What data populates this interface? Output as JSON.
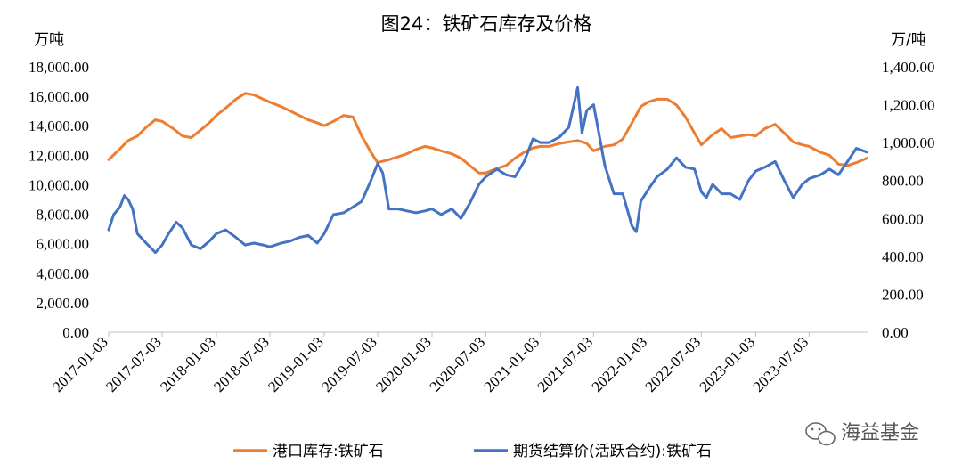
{
  "chart_data": {
    "type": "line",
    "title": "图24：铁矿石库存及价格",
    "y_left_unit": "万吨",
    "y_right_unit": "万/吨",
    "y_left_lim": [
      0,
      18000
    ],
    "y_right_lim": [
      0,
      1400
    ],
    "y_left_ticks": [
      "0.00",
      "2,000.00",
      "4,000.00",
      "6,000.00",
      "8,000.00",
      "10,000.00",
      "12,000.00",
      "14,000.00",
      "16,000.00",
      "18,000.00"
    ],
    "y_right_ticks": [
      "0.00",
      "200.00",
      "400.00",
      "600.00",
      "800.00",
      "1,000.00",
      "1,200.00",
      "1,400.00"
    ],
    "x_tick_labels": [
      "2017-01-03",
      "2017-07-03",
      "2018-01-03",
      "2018-07-03",
      "2019-01-03",
      "2019-07-03",
      "2020-01-03",
      "2020-07-03",
      "2021-01-03",
      "2021-07-03",
      "2022-01-03",
      "2022-07-03",
      "2023-01-03",
      "2023-07-03"
    ],
    "x_range": [
      "2017-01-03",
      "2024-01-20"
    ],
    "grid": false,
    "legend_position": "bottom",
    "series": [
      {
        "name": "港口库存:铁矿石",
        "axis": "left",
        "color": "#ED7D31",
        "points": [
          [
            "2017-01-03",
            11700
          ],
          [
            "2017-02-03",
            12300
          ],
          [
            "2017-03-10",
            13000
          ],
          [
            "2017-04-10",
            13300
          ],
          [
            "2017-05-10",
            13900
          ],
          [
            "2017-06-10",
            14400
          ],
          [
            "2017-07-03",
            14300
          ],
          [
            "2017-08-10",
            13800
          ],
          [
            "2017-09-10",
            13300
          ],
          [
            "2017-10-10",
            13200
          ],
          [
            "2017-11-10",
            13700
          ],
          [
            "2017-12-10",
            14200
          ],
          [
            "2018-01-03",
            14700
          ],
          [
            "2018-02-03",
            15200
          ],
          [
            "2018-03-10",
            15800
          ],
          [
            "2018-04-10",
            16200
          ],
          [
            "2018-05-10",
            16100
          ],
          [
            "2018-06-10",
            15800
          ],
          [
            "2018-07-03",
            15600
          ],
          [
            "2018-08-10",
            15300
          ],
          [
            "2018-09-10",
            15000
          ],
          [
            "2018-10-10",
            14700
          ],
          [
            "2018-11-10",
            14400
          ],
          [
            "2018-12-10",
            14200
          ],
          [
            "2019-01-03",
            14000
          ],
          [
            "2019-02-03",
            14300
          ],
          [
            "2019-03-10",
            14700
          ],
          [
            "2019-04-10",
            14600
          ],
          [
            "2019-05-10",
            13300
          ],
          [
            "2019-06-10",
            12200
          ],
          [
            "2019-07-03",
            11500
          ],
          [
            "2019-08-10",
            11700
          ],
          [
            "2019-09-10",
            11900
          ],
          [
            "2019-10-10",
            12100
          ],
          [
            "2019-11-10",
            12400
          ],
          [
            "2019-12-10",
            12600
          ],
          [
            "2020-01-03",
            12500
          ],
          [
            "2020-02-03",
            12300
          ],
          [
            "2020-03-10",
            12100
          ],
          [
            "2020-04-10",
            11800
          ],
          [
            "2020-05-10",
            11300
          ],
          [
            "2020-06-10",
            10800
          ],
          [
            "2020-07-03",
            10800
          ],
          [
            "2020-08-10",
            11100
          ],
          [
            "2020-09-10",
            11300
          ],
          [
            "2020-10-10",
            11800
          ],
          [
            "2020-11-10",
            12200
          ],
          [
            "2020-12-10",
            12500
          ],
          [
            "2021-01-03",
            12600
          ],
          [
            "2021-02-03",
            12600
          ],
          [
            "2021-03-10",
            12800
          ],
          [
            "2021-04-10",
            12900
          ],
          [
            "2021-05-10",
            13000
          ],
          [
            "2021-06-10",
            12800
          ],
          [
            "2021-07-03",
            12300
          ],
          [
            "2021-08-10",
            12600
          ],
          [
            "2021-09-10",
            12700
          ],
          [
            "2021-10-10",
            13100
          ],
          [
            "2021-11-10",
            14200
          ],
          [
            "2021-12-10",
            15300
          ],
          [
            "2022-01-03",
            15600
          ],
          [
            "2022-02-03",
            15800
          ],
          [
            "2022-03-10",
            15800
          ],
          [
            "2022-04-10",
            15400
          ],
          [
            "2022-05-10",
            14600
          ],
          [
            "2022-06-10",
            13500
          ],
          [
            "2022-07-03",
            12700
          ],
          [
            "2022-08-10",
            13400
          ],
          [
            "2022-09-10",
            13800
          ],
          [
            "2022-10-10",
            13200
          ],
          [
            "2022-11-10",
            13300
          ],
          [
            "2022-12-10",
            13400
          ],
          [
            "2023-01-03",
            13300
          ],
          [
            "2023-02-03",
            13800
          ],
          [
            "2023-03-10",
            14100
          ],
          [
            "2023-04-10",
            13500
          ],
          [
            "2023-05-10",
            12900
          ],
          [
            "2023-06-10",
            12700
          ],
          [
            "2023-07-03",
            12600
          ],
          [
            "2023-08-10",
            12200
          ],
          [
            "2023-09-10",
            12000
          ],
          [
            "2023-10-10",
            11400
          ],
          [
            "2023-11-10",
            11300
          ],
          [
            "2023-12-10",
            11500
          ],
          [
            "2024-01-15",
            11800
          ]
        ]
      },
      {
        "name": "期货结算价(活跃合约):铁矿石",
        "axis": "right",
        "color": "#4472C4",
        "points": [
          [
            "2017-01-03",
            540
          ],
          [
            "2017-01-20",
            620
          ],
          [
            "2017-02-10",
            660
          ],
          [
            "2017-02-25",
            720
          ],
          [
            "2017-03-10",
            700
          ],
          [
            "2017-03-25",
            650
          ],
          [
            "2017-04-10",
            520
          ],
          [
            "2017-05-10",
            470
          ],
          [
            "2017-06-10",
            420
          ],
          [
            "2017-07-03",
            460
          ],
          [
            "2017-07-25",
            520
          ],
          [
            "2017-08-20",
            580
          ],
          [
            "2017-09-10",
            550
          ],
          [
            "2017-10-10",
            460
          ],
          [
            "2017-11-10",
            440
          ],
          [
            "2017-12-10",
            480
          ],
          [
            "2018-01-03",
            520
          ],
          [
            "2018-02-03",
            540
          ],
          [
            "2018-03-10",
            500
          ],
          [
            "2018-04-10",
            460
          ],
          [
            "2018-05-10",
            470
          ],
          [
            "2018-06-10",
            460
          ],
          [
            "2018-07-03",
            450
          ],
          [
            "2018-08-10",
            470
          ],
          [
            "2018-09-10",
            480
          ],
          [
            "2018-10-10",
            500
          ],
          [
            "2018-11-10",
            510
          ],
          [
            "2018-12-10",
            470
          ],
          [
            "2019-01-03",
            520
          ],
          [
            "2019-02-03",
            620
          ],
          [
            "2019-03-10",
            630
          ],
          [
            "2019-04-10",
            660
          ],
          [
            "2019-05-10",
            690
          ],
          [
            "2019-06-10",
            800
          ],
          [
            "2019-07-03",
            890
          ],
          [
            "2019-07-20",
            840
          ],
          [
            "2019-08-10",
            650
          ],
          [
            "2019-09-10",
            650
          ],
          [
            "2019-10-10",
            640
          ],
          [
            "2019-11-10",
            630
          ],
          [
            "2019-12-10",
            640
          ],
          [
            "2020-01-03",
            650
          ],
          [
            "2020-02-03",
            620
          ],
          [
            "2020-03-10",
            650
          ],
          [
            "2020-04-10",
            600
          ],
          [
            "2020-05-10",
            680
          ],
          [
            "2020-06-10",
            780
          ],
          [
            "2020-07-03",
            820
          ],
          [
            "2020-08-10",
            860
          ],
          [
            "2020-09-10",
            830
          ],
          [
            "2020-10-10",
            820
          ],
          [
            "2020-11-10",
            900
          ],
          [
            "2020-12-10",
            1020
          ],
          [
            "2021-01-03",
            1000
          ],
          [
            "2021-02-03",
            1000
          ],
          [
            "2021-03-10",
            1030
          ],
          [
            "2021-04-10",
            1080
          ],
          [
            "2021-05-10",
            1290
          ],
          [
            "2021-05-25",
            1050
          ],
          [
            "2021-06-10",
            1170
          ],
          [
            "2021-07-03",
            1200
          ],
          [
            "2021-08-10",
            880
          ],
          [
            "2021-09-10",
            730
          ],
          [
            "2021-10-10",
            730
          ],
          [
            "2021-11-10",
            560
          ],
          [
            "2021-11-25",
            530
          ],
          [
            "2021-12-10",
            690
          ],
          [
            "2022-01-03",
            750
          ],
          [
            "2022-02-03",
            820
          ],
          [
            "2022-03-10",
            860
          ],
          [
            "2022-04-10",
            920
          ],
          [
            "2022-05-10",
            870
          ],
          [
            "2022-06-10",
            860
          ],
          [
            "2022-07-03",
            740
          ],
          [
            "2022-07-20",
            710
          ],
          [
            "2022-08-10",
            780
          ],
          [
            "2022-09-10",
            730
          ],
          [
            "2022-10-10",
            730
          ],
          [
            "2022-11-10",
            700
          ],
          [
            "2022-12-10",
            800
          ],
          [
            "2023-01-03",
            850
          ],
          [
            "2023-02-03",
            870
          ],
          [
            "2023-03-10",
            900
          ],
          [
            "2023-04-10",
            800
          ],
          [
            "2023-05-10",
            710
          ],
          [
            "2023-06-10",
            780
          ],
          [
            "2023-07-03",
            810
          ],
          [
            "2023-08-10",
            830
          ],
          [
            "2023-09-10",
            860
          ],
          [
            "2023-10-10",
            830
          ],
          [
            "2023-11-10",
            900
          ],
          [
            "2023-12-10",
            970
          ],
          [
            "2024-01-15",
            950
          ]
        ]
      }
    ]
  },
  "watermark": "海益基金",
  "watermark_icon": "wechat-icon"
}
